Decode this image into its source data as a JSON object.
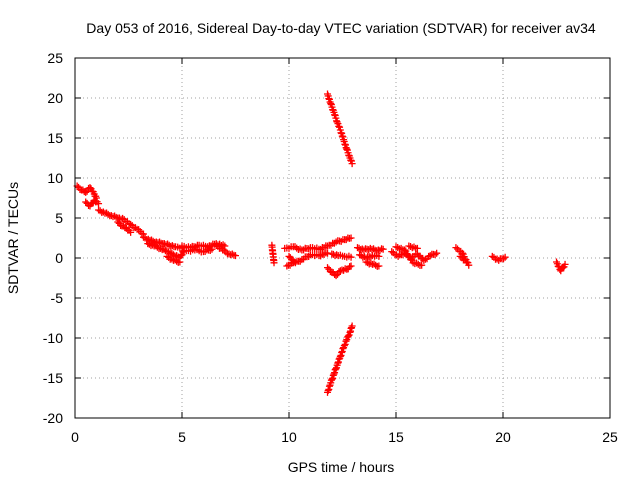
{
  "chart_data": {
    "type": "scatter",
    "title": "Day 053 of 2016, Sidereal Day-to-day VTEC variation (SDTVAR) for receiver av34",
    "xlabel": "GPS time / hours",
    "ylabel": "SDTVAR / TECUs",
    "xlim": [
      0,
      25
    ],
    "ylim": [
      -20,
      25
    ],
    "xticks": [
      0,
      5,
      10,
      15,
      20,
      25
    ],
    "yticks": [
      -20,
      -15,
      -10,
      -5,
      0,
      5,
      10,
      15,
      20,
      25
    ],
    "grid": true,
    "marker": "+",
    "color": "#ff0000",
    "series": [
      {
        "name": "SDTVAR",
        "segments": [
          {
            "x": [
              0.1,
              0.3,
              0.5,
              0.7,
              0.9,
              1.0
            ],
            "y": [
              9.0,
              8.5,
              8.2,
              8.8,
              8.0,
              7.5
            ]
          },
          {
            "x": [
              0.5,
              0.7,
              0.9,
              1.1
            ],
            "y": [
              7.0,
              6.5,
              7.2,
              6.8
            ]
          },
          {
            "x": [
              1.1,
              1.4,
              1.7,
              2.0,
              2.3,
              2.6,
              2.9,
              3.2
            ],
            "y": [
              6.0,
              5.6,
              5.3,
              5.0,
              4.8,
              4.2,
              3.6,
              3.0
            ]
          },
          {
            "x": [
              2.0,
              2.2,
              2.4,
              2.6
            ],
            "y": [
              4.5,
              4.0,
              3.7,
              3.2
            ]
          },
          {
            "x": [
              3.2,
              3.5,
              3.8,
              4.1,
              4.4,
              4.7,
              5.0
            ],
            "y": [
              2.6,
              2.2,
              2.0,
              1.8,
              1.6,
              1.4,
              1.3
            ]
          },
          {
            "x": [
              3.4,
              3.7,
              4.0,
              4.3,
              4.6,
              4.9,
              5.1
            ],
            "y": [
              1.8,
              1.5,
              1.2,
              0.8,
              0.4,
              0.1,
              0.9
            ]
          },
          {
            "x": [
              4.3,
              4.6,
              4.9
            ],
            "y": [
              0.2,
              -0.3,
              -0.5
            ]
          },
          {
            "x": [
              5.0,
              5.4,
              5.8,
              6.2,
              6.6,
              7.0
            ],
            "y": [
              1.5,
              1.3,
              1.6,
              1.4,
              1.8,
              1.5
            ]
          },
          {
            "x": [
              5.2,
              5.6,
              6.0,
              6.4
            ],
            "y": [
              0.9,
              1.0,
              0.8,
              1.1
            ]
          },
          {
            "x": [
              6.6,
              6.9,
              7.2,
              7.5
            ],
            "y": [
              1.6,
              1.0,
              0.5,
              0.3
            ]
          },
          {
            "x": [
              9.2,
              9.3
            ],
            "y": [
              1.6,
              -0.6
            ]
          },
          {
            "x": [
              9.8,
              10.2,
              10.6,
              11.0,
              11.4,
              11.8,
              12.2,
              12.6,
              12.9
            ],
            "y": [
              1.2,
              1.4,
              1.0,
              1.3,
              1.1,
              1.5,
              2.0,
              2.3,
              2.5
            ]
          },
          {
            "x": [
              10.0,
              10.3,
              10.6,
              11.0,
              11.4,
              11.8
            ],
            "y": [
              0.2,
              -0.6,
              -0.2,
              0.4,
              0.3,
              0.6
            ]
          },
          {
            "x": [
              9.9,
              10.2
            ],
            "y": [
              -1.0,
              -0.6
            ]
          },
          {
            "x": [
              11.8,
              12.0,
              12.2,
              12.4,
              12.7,
              12.9
            ],
            "y": [
              -1.2,
              -1.8,
              -2.2,
              -1.6,
              -1.4,
              -1.0
            ]
          },
          {
            "x": [
              12.0,
              12.3,
              12.6,
              12.9
            ],
            "y": [
              0.5,
              0.3,
              0.2,
              0.1
            ]
          },
          {
            "x": [
              11.8,
              11.95,
              12.1,
              12.25,
              12.4,
              12.55,
              12.7,
              12.85,
              12.95
            ],
            "y": [
              20.5,
              19.3,
              18.2,
              17.0,
              16.0,
              14.8,
              13.6,
              12.5,
              11.8
            ]
          },
          {
            "x": [
              11.8,
              11.95,
              12.1,
              12.25,
              12.4,
              12.55,
              12.7,
              12.85,
              12.95
            ],
            "y": [
              -16.8,
              -15.6,
              -14.5,
              -13.4,
              -12.3,
              -11.2,
              -10.2,
              -9.3,
              -8.5
            ]
          },
          {
            "x": [
              13.2,
              13.5,
              13.8,
              14.1,
              14.4
            ],
            "y": [
              1.3,
              1.0,
              1.2,
              0.9,
              1.1
            ]
          },
          {
            "x": [
              13.3,
              13.6,
              13.9,
              14.2
            ],
            "y": [
              0.4,
              0.0,
              0.3,
              0.2
            ]
          },
          {
            "x": [
              13.6,
              13.9,
              14.2
            ],
            "y": [
              -0.5,
              -0.8,
              -1.0
            ]
          },
          {
            "x": [
              14.8,
              15.1,
              15.4,
              15.7,
              16.0,
              16.3,
              16.6,
              16.9
            ],
            "y": [
              0.8,
              0.2,
              0.6,
              0.0,
              0.5,
              -0.3,
              0.3,
              0.6
            ]
          },
          {
            "x": [
              15.0,
              15.4,
              15.8,
              16.2
            ],
            "y": [
              1.4,
              1.0,
              -0.6,
              -0.9
            ]
          },
          {
            "x": [
              15.6,
              16.0
            ],
            "y": [
              1.5,
              1.2
            ]
          },
          {
            "x": [
              17.8,
              18.1,
              18.4
            ],
            "y": [
              1.3,
              0.6,
              -0.9
            ]
          },
          {
            "x": [
              18.0,
              18.3
            ],
            "y": [
              0.2,
              -0.5
            ]
          },
          {
            "x": [
              19.5,
              19.8,
              20.1
            ],
            "y": [
              0.2,
              -0.3,
              0.1
            ]
          },
          {
            "x": [
              22.5,
              22.7,
              22.9
            ],
            "y": [
              -0.5,
              -1.6,
              -0.8
            ]
          }
        ]
      }
    ]
  }
}
